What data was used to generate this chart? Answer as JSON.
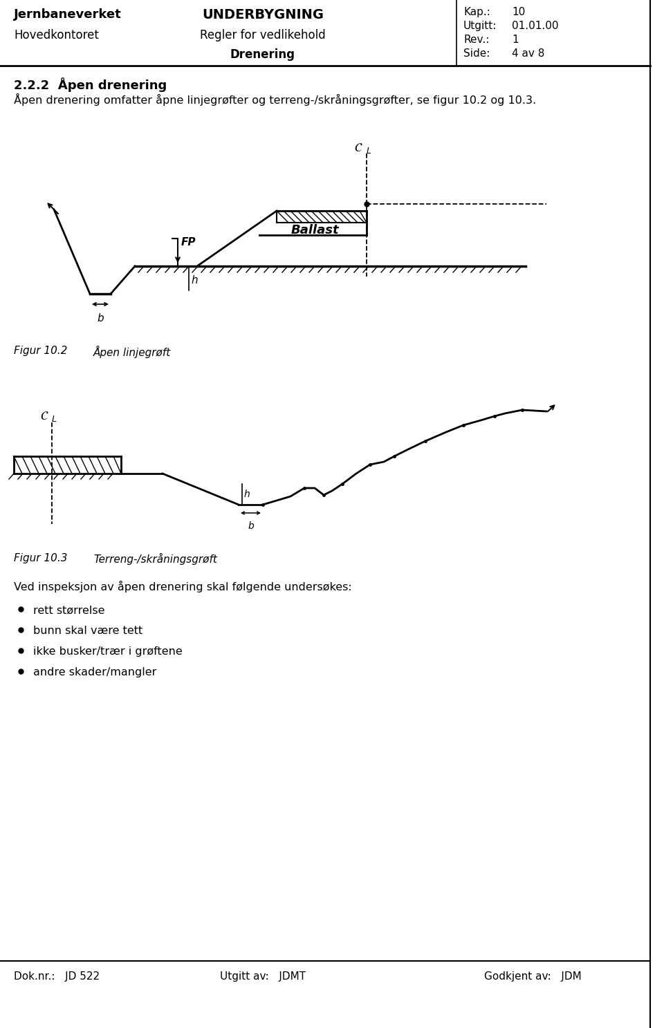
{
  "page_title_left1": "Jernbaneverket",
  "page_title_left2": "Hovedkontoret",
  "page_title_center1": "UNDERBYGNING",
  "page_title_center2": "Regler for vedlikehold",
  "page_title_center3": "Drenering",
  "page_kap_label": "Kap.:",
  "page_kap_val": "10",
  "page_utgitt_label": "Utgitt:",
  "page_utgitt_val": "01.01.00",
  "page_rev_label": "Rev.:",
  "page_rev_val": "1",
  "page_side_label": "Side:",
  "page_side_val": "4 av 8",
  "section_title": "2.2.2  Åpen drenering",
  "section_text": "Åpen drenering omfatter åpne linjegrøfter og terreng-/skråningsgrøfter, se figur 10.2 og 10.3.",
  "fig1_caption_num": "Figur 10.2",
  "fig1_caption_text": "Åpen linjegrøft",
  "fig2_caption_num": "Figur 10.3",
  "fig2_caption_text": "Terreng-/skråningsgrøft",
  "inspection_text": "Ved inspeksjon av åpen drenering skal følgende undersøkes:",
  "bullet_items": [
    "rett størrelse",
    "bunn skal være tett",
    "ikke busker/trær i grøftene",
    "andre skader/mangler"
  ],
  "footer_dok": "Dok.nr.:   JD 522",
  "footer_utgitt_av": "Utgitt av:   JDMT",
  "footer_godkjent_av": "Godkjent av:   JDM",
  "bg_color": "#ffffff",
  "line_color": "#000000"
}
